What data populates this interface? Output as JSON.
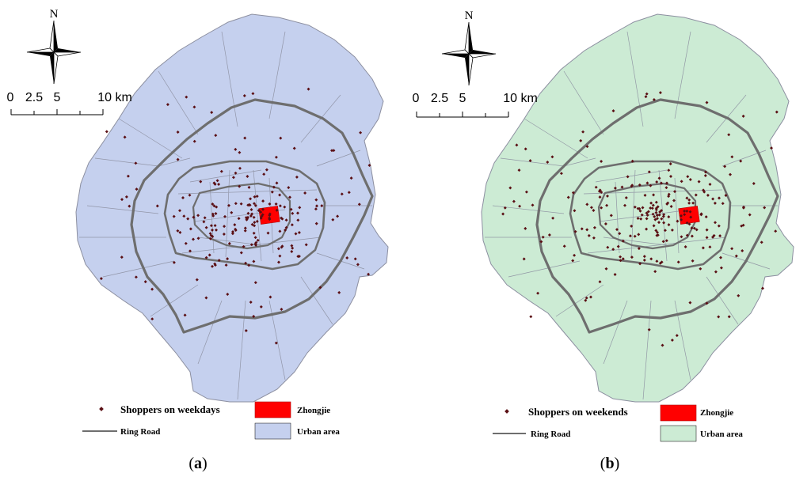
{
  "panels": [
    {
      "id": "a",
      "caption_open": "(",
      "caption_letter": "a",
      "caption_close": ")",
      "fill": "#c5d0ee",
      "north": "N",
      "scale": [
        "0",
        "2.5",
        "5",
        "10 km"
      ],
      "legend": {
        "shoppers": "Shoppers on weekdays",
        "zhongjie": "Zhongjie",
        "ring_road": "Ring Road",
        "urban_area": "Urban area"
      }
    },
    {
      "id": "b",
      "caption_open": "(",
      "caption_letter": "b",
      "caption_close": ")",
      "fill": "#ccebd4",
      "north": "N",
      "scale": [
        "0",
        "2.5",
        "5",
        "10 km"
      ],
      "legend": {
        "shoppers": "Shoppers on weekends",
        "zhongjie": "Zhongjie",
        "ring_road": "Ring Road",
        "urban_area": "Urban area"
      }
    }
  ],
  "colors": {
    "dots": "#5a0f14",
    "zhongjie": "#ff0000",
    "ring_road": "#6e6e6e",
    "district_line": "#8c8fa0"
  }
}
